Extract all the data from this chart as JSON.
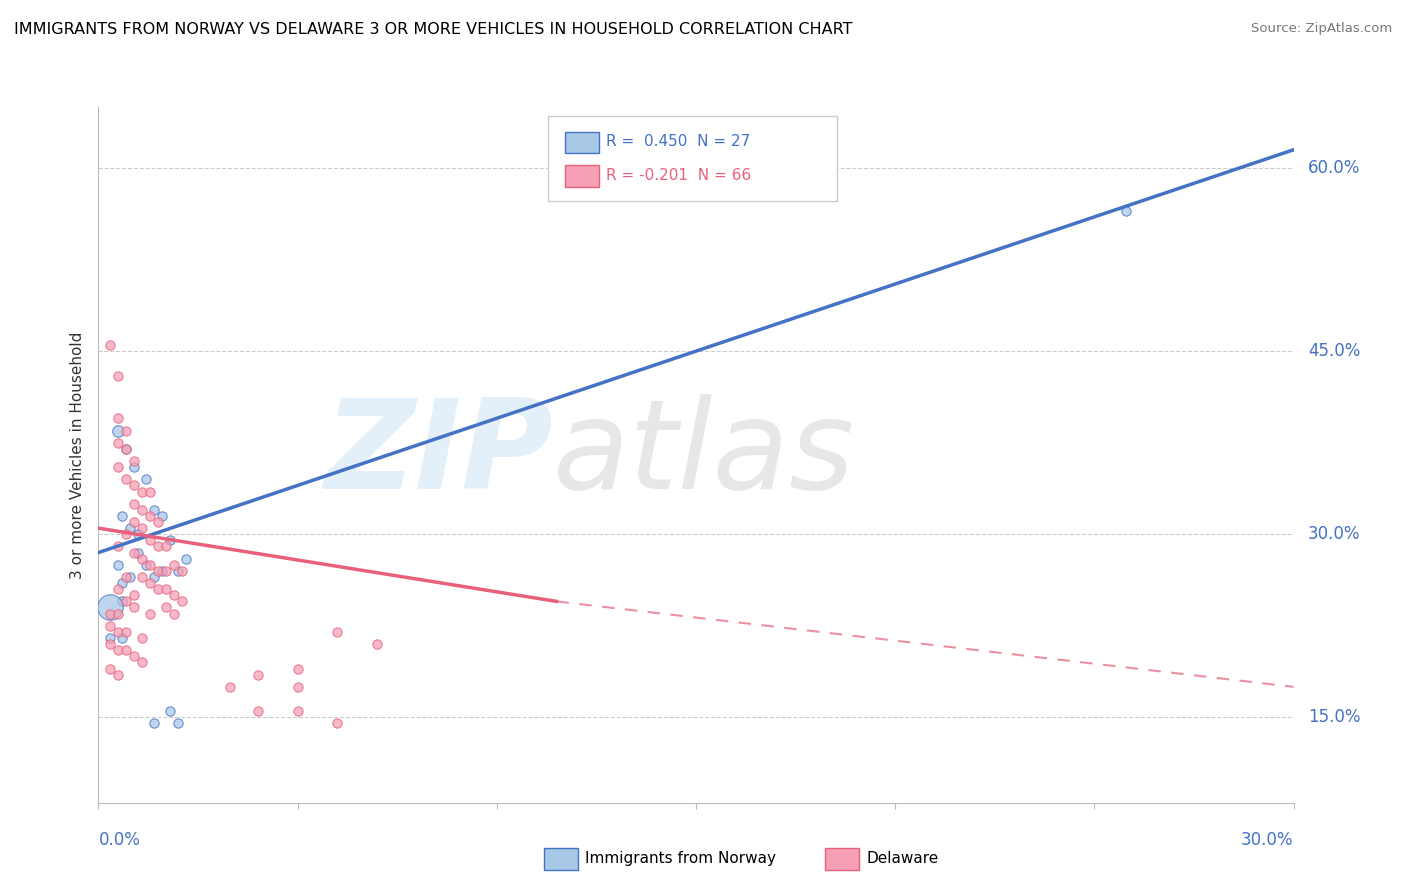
{
  "title": "IMMIGRANTS FROM NORWAY VS DELAWARE 3 OR MORE VEHICLES IN HOUSEHOLD CORRELATION CHART",
  "source": "Source: ZipAtlas.com",
  "ylabel": "3 or more Vehicles in Household",
  "ytick_vals": [
    0.15,
    0.3,
    0.45,
    0.6
  ],
  "ytick_labels": [
    "15.0%",
    "30.0%",
    "45.0%",
    "60.0%"
  ],
  "xmin": 0.0,
  "xmax": 0.3,
  "ymin": 0.08,
  "ymax": 0.65,
  "legend_r_norway": "R =  0.450",
  "legend_n_norway": "N = 27",
  "legend_r_delaware": "R = -0.201",
  "legend_n_delaware": "N = 66",
  "norway_color": "#a8c8e8",
  "delaware_color": "#f5a0b5",
  "norway_line_color": "#4472c4",
  "delaware_line_color": "#e8607a",
  "norway_line": [
    0.0,
    0.285,
    0.3,
    0.615
  ],
  "delaware_line_solid": [
    0.0,
    0.305,
    0.115,
    0.245
  ],
  "delaware_line_dash": [
    0.115,
    0.245,
    0.3,
    0.175
  ],
  "norway_points": [
    [
      0.005,
      0.385,
      10
    ],
    [
      0.007,
      0.37,
      8
    ],
    [
      0.009,
      0.355,
      8
    ],
    [
      0.012,
      0.345,
      8
    ],
    [
      0.006,
      0.315,
      8
    ],
    [
      0.008,
      0.305,
      8
    ],
    [
      0.01,
      0.3,
      8
    ],
    [
      0.014,
      0.32,
      8
    ],
    [
      0.016,
      0.315,
      8
    ],
    [
      0.01,
      0.285,
      8
    ],
    [
      0.005,
      0.275,
      8
    ],
    [
      0.012,
      0.275,
      8
    ],
    [
      0.006,
      0.26,
      8
    ],
    [
      0.008,
      0.265,
      8
    ],
    [
      0.014,
      0.265,
      8
    ],
    [
      0.016,
      0.27,
      8
    ],
    [
      0.02,
      0.27,
      8
    ],
    [
      0.022,
      0.28,
      8
    ],
    [
      0.006,
      0.245,
      8
    ],
    [
      0.003,
      0.24,
      22
    ],
    [
      0.003,
      0.215,
      8
    ],
    [
      0.006,
      0.215,
      8
    ],
    [
      0.018,
      0.295,
      8
    ],
    [
      0.014,
      0.145,
      8
    ],
    [
      0.02,
      0.145,
      8
    ],
    [
      0.018,
      0.155,
      8
    ],
    [
      0.258,
      0.565,
      8
    ]
  ],
  "delaware_points": [
    [
      0.003,
      0.455,
      8
    ],
    [
      0.005,
      0.43,
      8
    ],
    [
      0.005,
      0.395,
      8
    ],
    [
      0.007,
      0.385,
      8
    ],
    [
      0.005,
      0.375,
      8
    ],
    [
      0.007,
      0.37,
      8
    ],
    [
      0.009,
      0.36,
      8
    ],
    [
      0.005,
      0.355,
      8
    ],
    [
      0.007,
      0.345,
      8
    ],
    [
      0.009,
      0.34,
      8
    ],
    [
      0.011,
      0.335,
      8
    ],
    [
      0.013,
      0.335,
      8
    ],
    [
      0.009,
      0.325,
      8
    ],
    [
      0.011,
      0.32,
      8
    ],
    [
      0.013,
      0.315,
      8
    ],
    [
      0.015,
      0.31,
      8
    ],
    [
      0.009,
      0.31,
      8
    ],
    [
      0.011,
      0.305,
      8
    ],
    [
      0.007,
      0.3,
      8
    ],
    [
      0.013,
      0.295,
      8
    ],
    [
      0.015,
      0.29,
      8
    ],
    [
      0.017,
      0.29,
      8
    ],
    [
      0.005,
      0.29,
      8
    ],
    [
      0.009,
      0.285,
      8
    ],
    [
      0.011,
      0.28,
      8
    ],
    [
      0.013,
      0.275,
      8
    ],
    [
      0.015,
      0.27,
      8
    ],
    [
      0.017,
      0.27,
      8
    ],
    [
      0.019,
      0.275,
      8
    ],
    [
      0.021,
      0.27,
      8
    ],
    [
      0.007,
      0.265,
      8
    ],
    [
      0.011,
      0.265,
      8
    ],
    [
      0.013,
      0.26,
      8
    ],
    [
      0.015,
      0.255,
      8
    ],
    [
      0.017,
      0.255,
      8
    ],
    [
      0.005,
      0.255,
      8
    ],
    [
      0.009,
      0.25,
      8
    ],
    [
      0.019,
      0.25,
      8
    ],
    [
      0.021,
      0.245,
      8
    ],
    [
      0.007,
      0.245,
      8
    ],
    [
      0.009,
      0.24,
      8
    ],
    [
      0.003,
      0.235,
      8
    ],
    [
      0.005,
      0.235,
      8
    ],
    [
      0.017,
      0.24,
      8
    ],
    [
      0.013,
      0.235,
      8
    ],
    [
      0.019,
      0.235,
      8
    ],
    [
      0.003,
      0.225,
      8
    ],
    [
      0.005,
      0.22,
      8
    ],
    [
      0.007,
      0.22,
      8
    ],
    [
      0.011,
      0.215,
      8
    ],
    [
      0.003,
      0.21,
      8
    ],
    [
      0.005,
      0.205,
      8
    ],
    [
      0.007,
      0.205,
      8
    ],
    [
      0.009,
      0.2,
      8
    ],
    [
      0.011,
      0.195,
      8
    ],
    [
      0.003,
      0.19,
      8
    ],
    [
      0.005,
      0.185,
      8
    ],
    [
      0.06,
      0.22,
      8
    ],
    [
      0.07,
      0.21,
      8
    ],
    [
      0.05,
      0.19,
      8
    ],
    [
      0.04,
      0.185,
      8
    ],
    [
      0.033,
      0.175,
      8
    ],
    [
      0.05,
      0.175,
      8
    ],
    [
      0.04,
      0.155,
      8
    ],
    [
      0.05,
      0.155,
      8
    ],
    [
      0.06,
      0.145,
      8
    ]
  ]
}
